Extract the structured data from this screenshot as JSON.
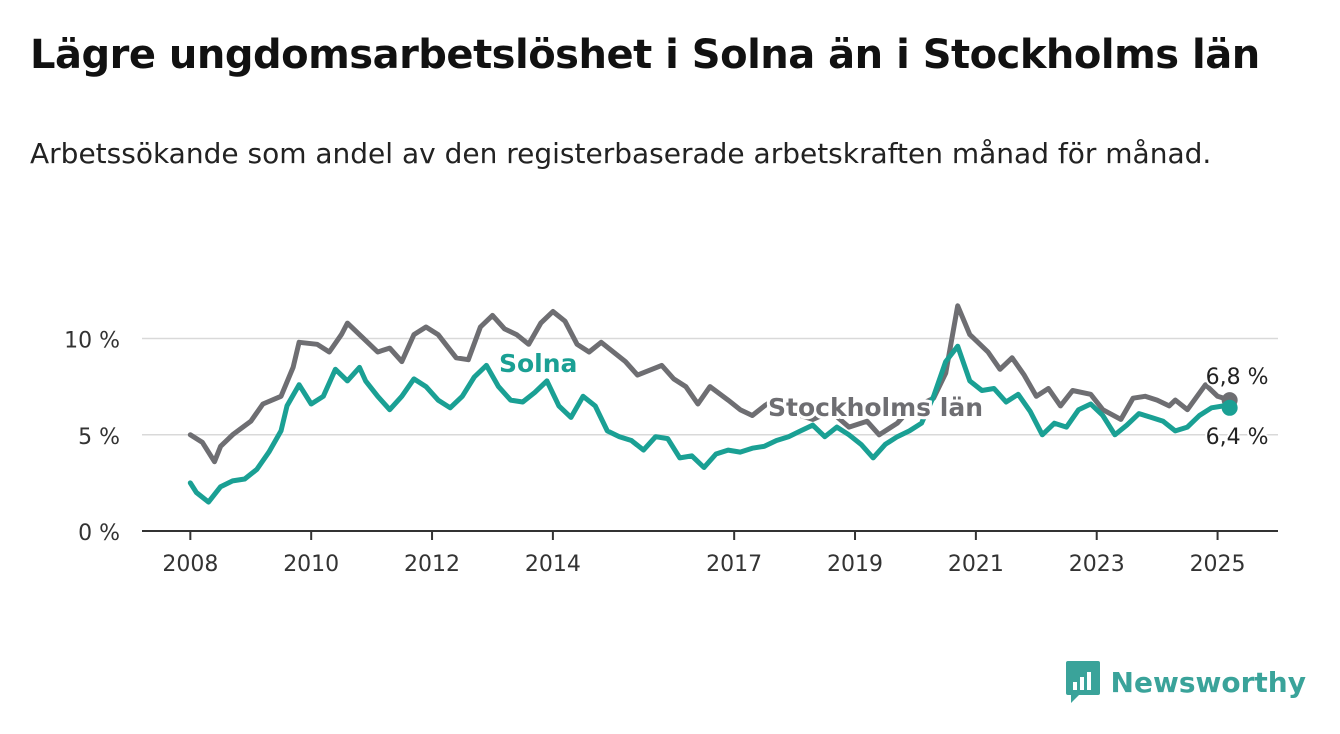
{
  "title": "Lägre ungdomsarbetslöshet i Solna än i Stockholms län",
  "subtitle": "Arbetssökande som andel av den registerbaserade arbetskraften månad för månad.",
  "brand": {
    "name": "Newsworthy",
    "icon": "bar-chart-logo-icon",
    "color": "#3aa39a"
  },
  "chart_data": {
    "type": "line",
    "title": "Lägre ungdomsarbetslöshet i Solna än i Stockholms län",
    "subtitle": "Arbetssökande som andel av den registerbaserade arbetskraften månad för månad.",
    "xlabel": "",
    "ylabel": "",
    "ylim": [
      0,
      12
    ],
    "xlim": [
      2007.2,
      2026.0
    ],
    "y_ticks": [
      {
        "value": 0,
        "label": "0 %"
      },
      {
        "value": 5,
        "label": "5 %"
      },
      {
        "value": 10,
        "label": "10 %"
      }
    ],
    "x_ticks": [
      {
        "value": 2008,
        "label": "2008"
      },
      {
        "value": 2010,
        "label": "2010"
      },
      {
        "value": 2012,
        "label": "2012"
      },
      {
        "value": 2014,
        "label": "2014"
      },
      {
        "value": 2017,
        "label": "2017"
      },
      {
        "value": 2019,
        "label": "2019"
      },
      {
        "value": 2021,
        "label": "2021"
      },
      {
        "value": 2023,
        "label": "2023"
      },
      {
        "value": 2025,
        "label": "2025"
      }
    ],
    "grid": true,
    "legend": "none",
    "series": [
      {
        "name": "Stockholms län",
        "color": "#6e6e72",
        "end_label": "6,8 %",
        "x": [
          2008.0,
          2008.2,
          2008.4,
          2008.5,
          2008.7,
          2009.0,
          2009.2,
          2009.5,
          2009.7,
          2009.8,
          2010.1,
          2010.3,
          2010.5,
          2010.6,
          2010.9,
          2011.1,
          2011.3,
          2011.5,
          2011.7,
          2011.9,
          2012.1,
          2012.4,
          2012.6,
          2012.8,
          2013.0,
          2013.2,
          2013.4,
          2013.6,
          2013.8,
          2014.0,
          2014.2,
          2014.4,
          2014.6,
          2014.8,
          2015.2,
          2015.4,
          2015.8,
          2016.0,
          2016.2,
          2016.4,
          2016.6,
          2016.9,
          2017.1,
          2017.3,
          2017.5,
          2017.7,
          2018.0,
          2018.3,
          2018.6,
          2018.9,
          2019.2,
          2019.4,
          2019.7,
          2019.9,
          2020.1,
          2020.3,
          2020.5,
          2020.7,
          2020.9,
          2021.2,
          2021.4,
          2021.6,
          2021.8,
          2022.0,
          2022.2,
          2022.4,
          2022.6,
          2022.9,
          2023.1,
          2023.4,
          2023.6,
          2023.8,
          2024.0,
          2024.2,
          2024.3,
          2024.5,
          2024.8,
          2025.0,
          2025.2
        ],
        "y": [
          5.0,
          4.6,
          3.6,
          4.4,
          5.0,
          5.7,
          6.6,
          7.0,
          8.5,
          9.8,
          9.7,
          9.3,
          10.2,
          10.8,
          9.9,
          9.3,
          9.5,
          8.8,
          10.2,
          10.6,
          10.2,
          9.0,
          8.9,
          10.6,
          11.2,
          10.5,
          10.2,
          9.7,
          10.8,
          11.4,
          10.9,
          9.7,
          9.3,
          9.8,
          8.8,
          8.1,
          8.6,
          7.9,
          7.5,
          6.6,
          7.5,
          6.8,
          6.3,
          6.0,
          6.5,
          6.9,
          6.1,
          5.8,
          6.2,
          5.4,
          5.7,
          5.0,
          5.6,
          6.3,
          6.6,
          6.9,
          8.2,
          11.7,
          10.2,
          9.3,
          8.4,
          9.0,
          8.1,
          7.0,
          7.4,
          6.5,
          7.3,
          7.1,
          6.3,
          5.8,
          6.9,
          7.0,
          6.8,
          6.5,
          6.8,
          6.3,
          7.6,
          7.0,
          6.8
        ]
      },
      {
        "name": "Solna",
        "color": "#1aa094",
        "end_label": "6,4 %",
        "x": [
          2008.0,
          2008.1,
          2008.3,
          2008.5,
          2008.7,
          2008.9,
          2009.1,
          2009.3,
          2009.5,
          2009.6,
          2009.8,
          2010.0,
          2010.2,
          2010.4,
          2010.6,
          2010.8,
          2010.9,
          2011.1,
          2011.3,
          2011.5,
          2011.7,
          2011.9,
          2012.1,
          2012.3,
          2012.5,
          2012.7,
          2012.9,
          2013.1,
          2013.3,
          2013.5,
          2013.7,
          2013.9,
          2014.1,
          2014.3,
          2014.5,
          2014.7,
          2014.9,
          2015.1,
          2015.3,
          2015.5,
          2015.7,
          2015.9,
          2016.1,
          2016.3,
          2016.5,
          2016.7,
          2016.9,
          2017.1,
          2017.3,
          2017.5,
          2017.7,
          2017.9,
          2018.1,
          2018.3,
          2018.5,
          2018.7,
          2018.9,
          2019.1,
          2019.3,
          2019.5,
          2019.7,
          2019.9,
          2020.1,
          2020.3,
          2020.5,
          2020.7,
          2020.9,
          2021.1,
          2021.3,
          2021.5,
          2021.7,
          2021.9,
          2022.1,
          2022.3,
          2022.5,
          2022.7,
          2022.9,
          2023.1,
          2023.3,
          2023.5,
          2023.7,
          2023.9,
          2024.1,
          2024.3,
          2024.5,
          2024.7,
          2024.9,
          2025.1,
          2025.2
        ],
        "y": [
          2.5,
          2.0,
          1.5,
          2.3,
          2.6,
          2.7,
          3.2,
          4.1,
          5.2,
          6.5,
          7.6,
          6.6,
          7.0,
          8.4,
          7.8,
          8.5,
          7.8,
          7.0,
          6.3,
          7.0,
          7.9,
          7.5,
          6.8,
          6.4,
          7.0,
          8.0,
          8.6,
          7.5,
          6.8,
          6.7,
          7.2,
          7.8,
          6.5,
          5.9,
          7.0,
          6.5,
          5.2,
          4.9,
          4.7,
          4.2,
          4.9,
          4.8,
          3.8,
          3.9,
          3.3,
          4.0,
          4.2,
          4.1,
          4.3,
          4.4,
          4.7,
          4.9,
          5.2,
          5.5,
          4.9,
          5.4,
          5.0,
          4.5,
          3.8,
          4.5,
          4.9,
          5.2,
          5.6,
          7.0,
          8.8,
          9.6,
          7.8,
          7.3,
          7.4,
          6.7,
          7.1,
          6.2,
          5.0,
          5.6,
          5.4,
          6.3,
          6.6,
          6.0,
          5.0,
          5.5,
          6.1,
          5.9,
          5.7,
          5.2,
          5.4,
          6.0,
          6.4,
          6.5,
          6.4
        ]
      }
    ],
    "annotations": [
      {
        "text": "Solna",
        "series": "Solna"
      },
      {
        "text": "Stockholms län",
        "series": "Stockholms län"
      }
    ]
  }
}
